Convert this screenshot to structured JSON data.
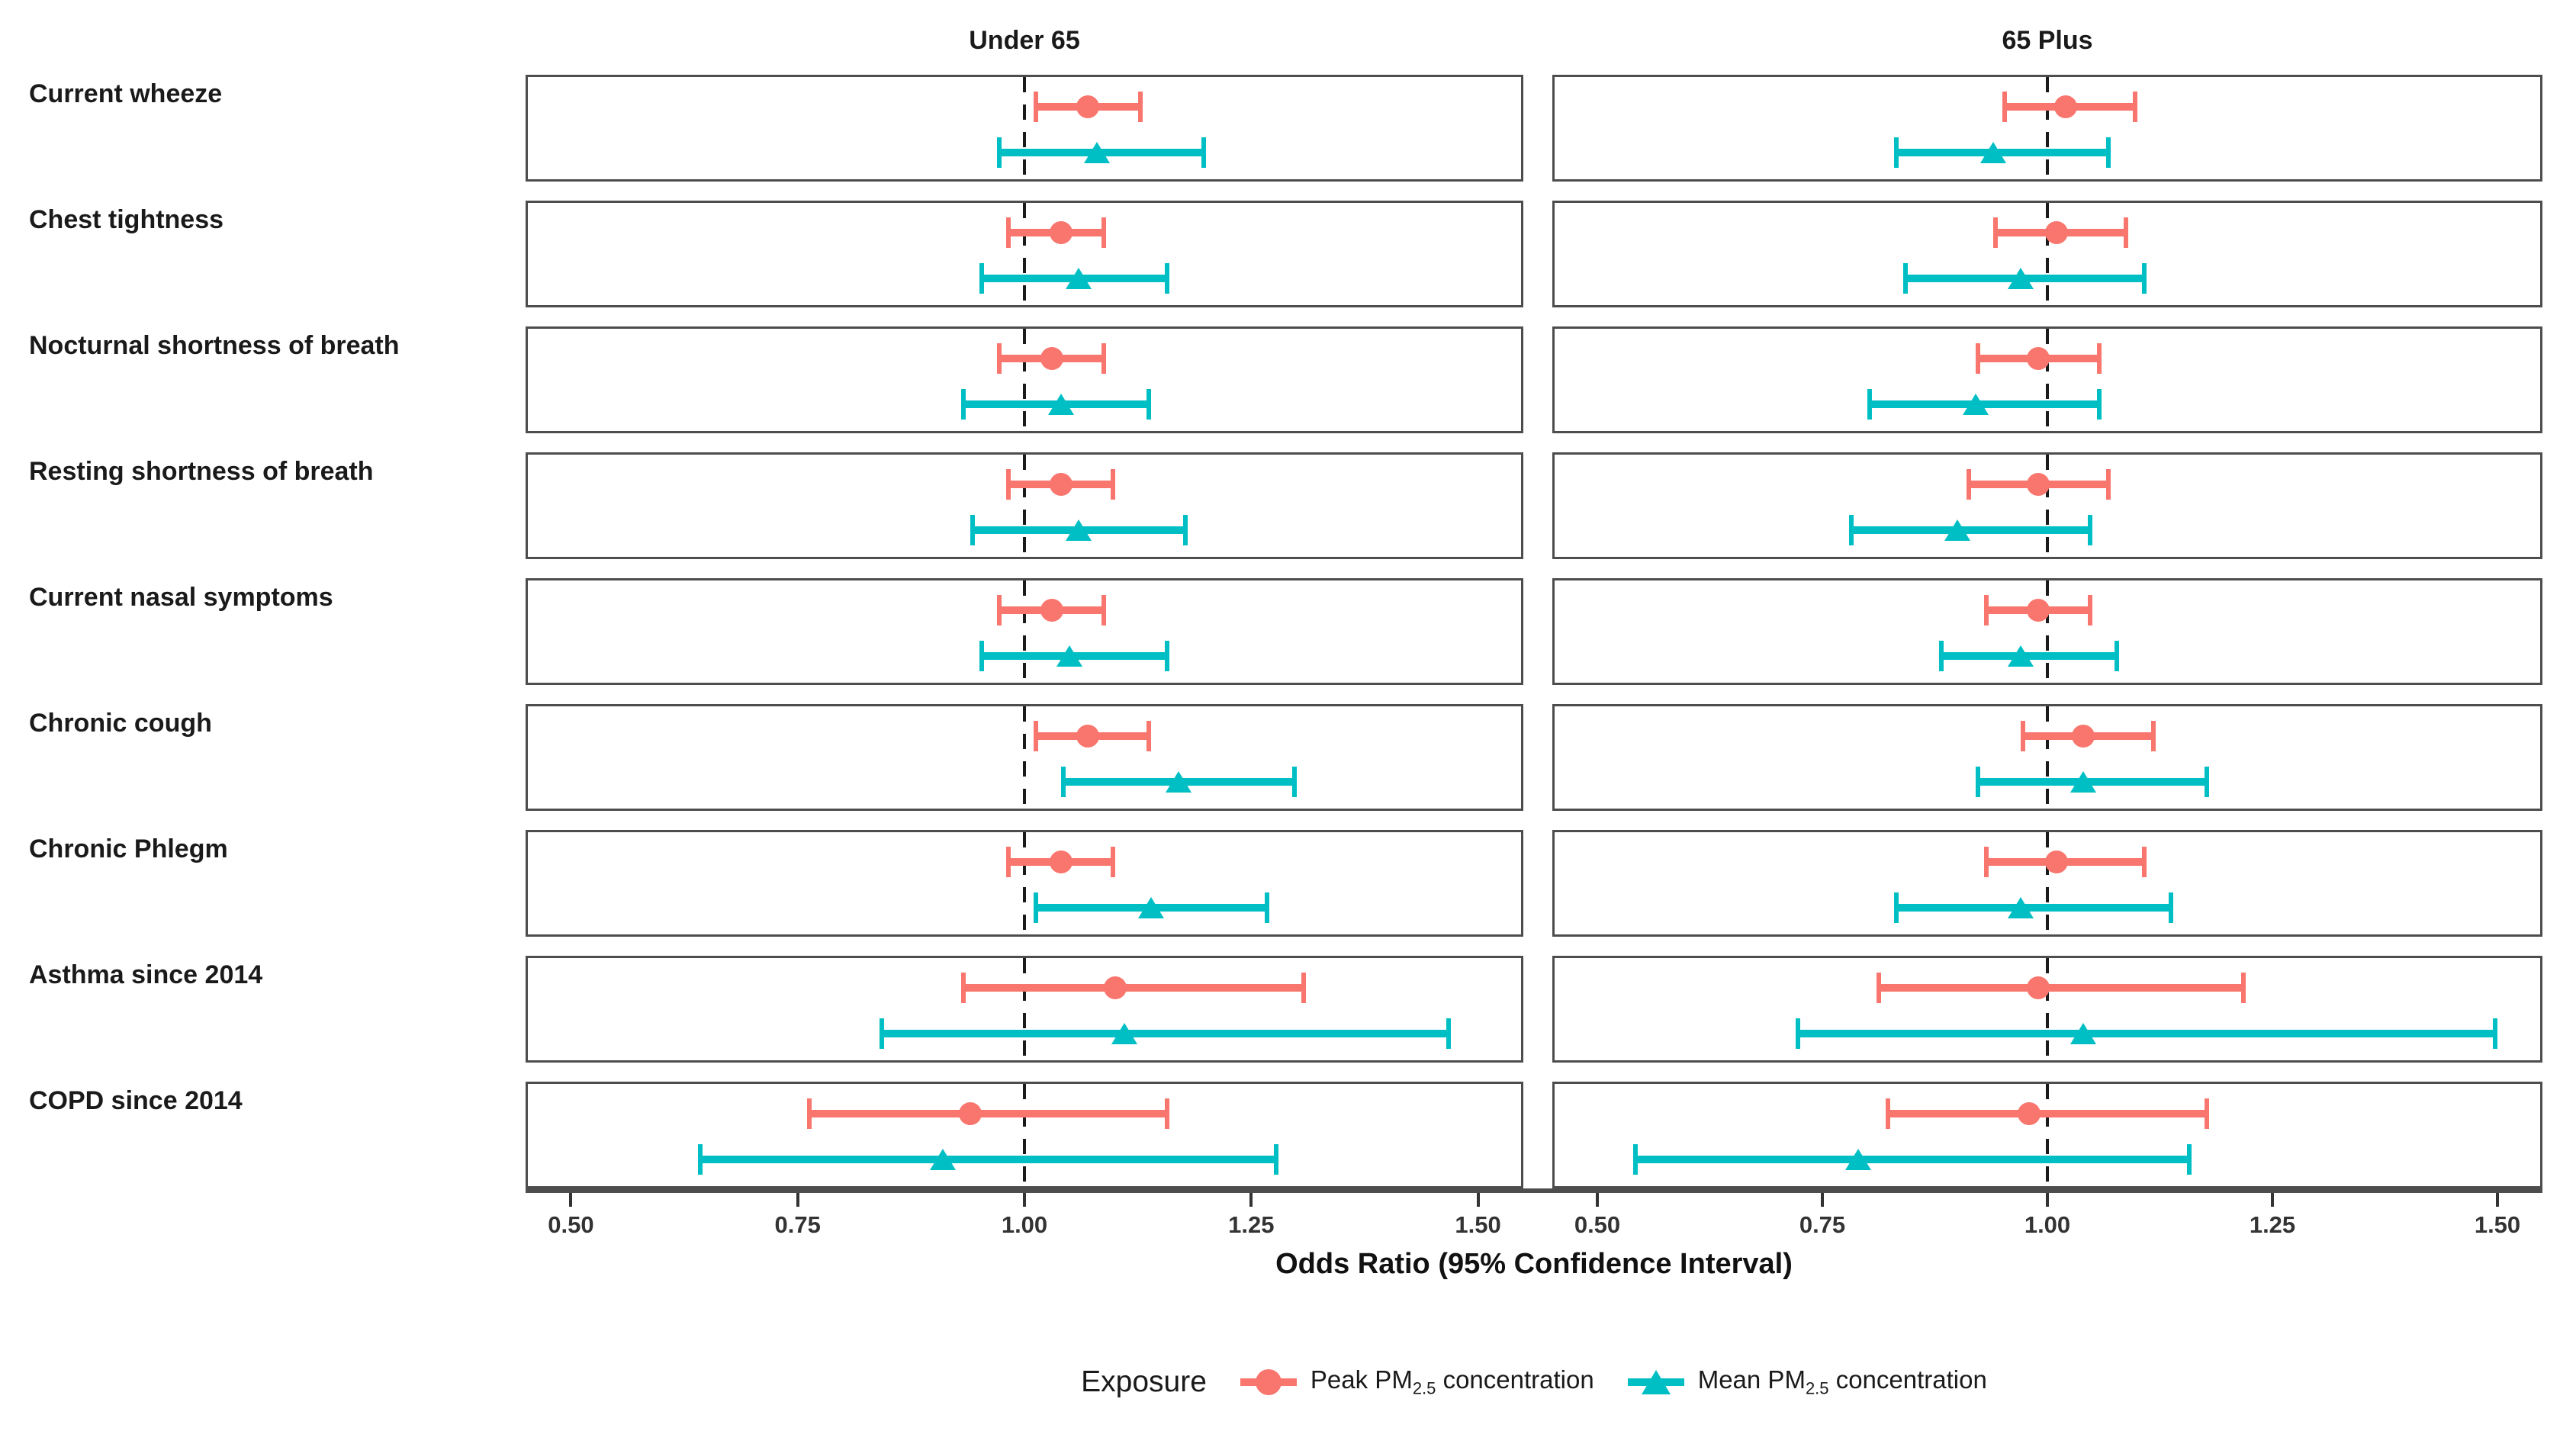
{
  "panels": [
    {
      "title": "Under 65"
    },
    {
      "title": "65 Plus"
    }
  ],
  "axis": {
    "title": "Odds Ratio (95% Confidence Interval)",
    "ticks": [
      "0.50",
      "0.75",
      "1.00",
      "1.25",
      "1.50"
    ],
    "tick_values": [
      0.5,
      0.75,
      1.0,
      1.25,
      1.5
    ],
    "range": [
      0.45,
      1.55
    ],
    "reference_line": 1.0
  },
  "colors": {
    "peak": "#F8766D",
    "mean": "#00BFC4",
    "panel_border": "#4d4d4d",
    "axis_line": "#4d4d4d",
    "tick": "#333333",
    "reference": "#1a1a1a"
  },
  "legend": {
    "title": "Exposure",
    "items": [
      {
        "label_prefix": "Peak PM",
        "label_sub": "2.5",
        "label_suffix": " concentration",
        "marker": "circle",
        "color_key": "peak"
      },
      {
        "label_prefix": "Mean PM",
        "label_sub": "2.5",
        "label_suffix": " concentration",
        "marker": "triangle",
        "color_key": "mean"
      }
    ]
  },
  "chart_data": {
    "type": "scatter",
    "subtype": "forest_plot_dot_whisker",
    "facets": [
      "Under 65",
      "65 Plus"
    ],
    "categories": [
      "Current wheeze",
      "Chest tightness",
      "Nocturnal shortness of breath",
      "Resting shortness of breath",
      "Current nasal symptoms",
      "Chronic cough",
      "Chronic Phlegm",
      "Asthma since 2014",
      "COPD since 2014"
    ],
    "series": [
      {
        "name": "Peak PM2.5 concentration",
        "facet": "Under 65",
        "marker": "circle",
        "odds_ratio": [
          1.07,
          1.04,
          1.03,
          1.04,
          1.03,
          1.07,
          1.04,
          1.1,
          0.94
        ],
        "ci_low": [
          1.01,
          0.98,
          0.97,
          0.98,
          0.97,
          1.01,
          0.98,
          0.93,
          0.76
        ],
        "ci_high": [
          1.13,
          1.09,
          1.09,
          1.1,
          1.09,
          1.14,
          1.1,
          1.31,
          1.16
        ]
      },
      {
        "name": "Mean PM2.5 concentration",
        "facet": "Under 65",
        "marker": "triangle",
        "odds_ratio": [
          1.08,
          1.06,
          1.04,
          1.06,
          1.05,
          1.17,
          1.14,
          1.11,
          0.91
        ],
        "ci_low": [
          0.97,
          0.95,
          0.93,
          0.94,
          0.95,
          1.04,
          1.01,
          0.84,
          0.64
        ],
        "ci_high": [
          1.2,
          1.16,
          1.14,
          1.18,
          1.16,
          1.3,
          1.27,
          1.47,
          1.28
        ]
      },
      {
        "name": "Peak PM2.5 concentration",
        "facet": "65 Plus",
        "marker": "circle",
        "odds_ratio": [
          1.02,
          1.01,
          0.99,
          0.99,
          0.99,
          1.04,
          1.01,
          0.99,
          0.98
        ],
        "ci_low": [
          0.95,
          0.94,
          0.92,
          0.91,
          0.93,
          0.97,
          0.93,
          0.81,
          0.82
        ],
        "ci_high": [
          1.1,
          1.09,
          1.06,
          1.07,
          1.05,
          1.12,
          1.11,
          1.22,
          1.18
        ]
      },
      {
        "name": "Mean PM2.5 concentration",
        "facet": "65 Plus",
        "marker": "triangle",
        "odds_ratio": [
          0.94,
          0.97,
          0.92,
          0.9,
          0.97,
          1.04,
          0.97,
          1.04,
          0.79
        ],
        "ci_low": [
          0.83,
          0.84,
          0.8,
          0.78,
          0.88,
          0.92,
          0.83,
          0.72,
          0.54
        ],
        "ci_high": [
          1.07,
          1.11,
          1.06,
          1.05,
          1.08,
          1.18,
          1.14,
          1.5,
          1.16
        ]
      }
    ],
    "xlabel": "Odds Ratio (95% Confidence Interval)",
    "xlim": [
      0.45,
      1.55
    ],
    "xticks": [
      0.5,
      0.75,
      1.0,
      1.25,
      1.5
    ],
    "reference_line": 1.0,
    "grid": false,
    "legend_title": "Exposure",
    "legend_position": "bottom"
  }
}
